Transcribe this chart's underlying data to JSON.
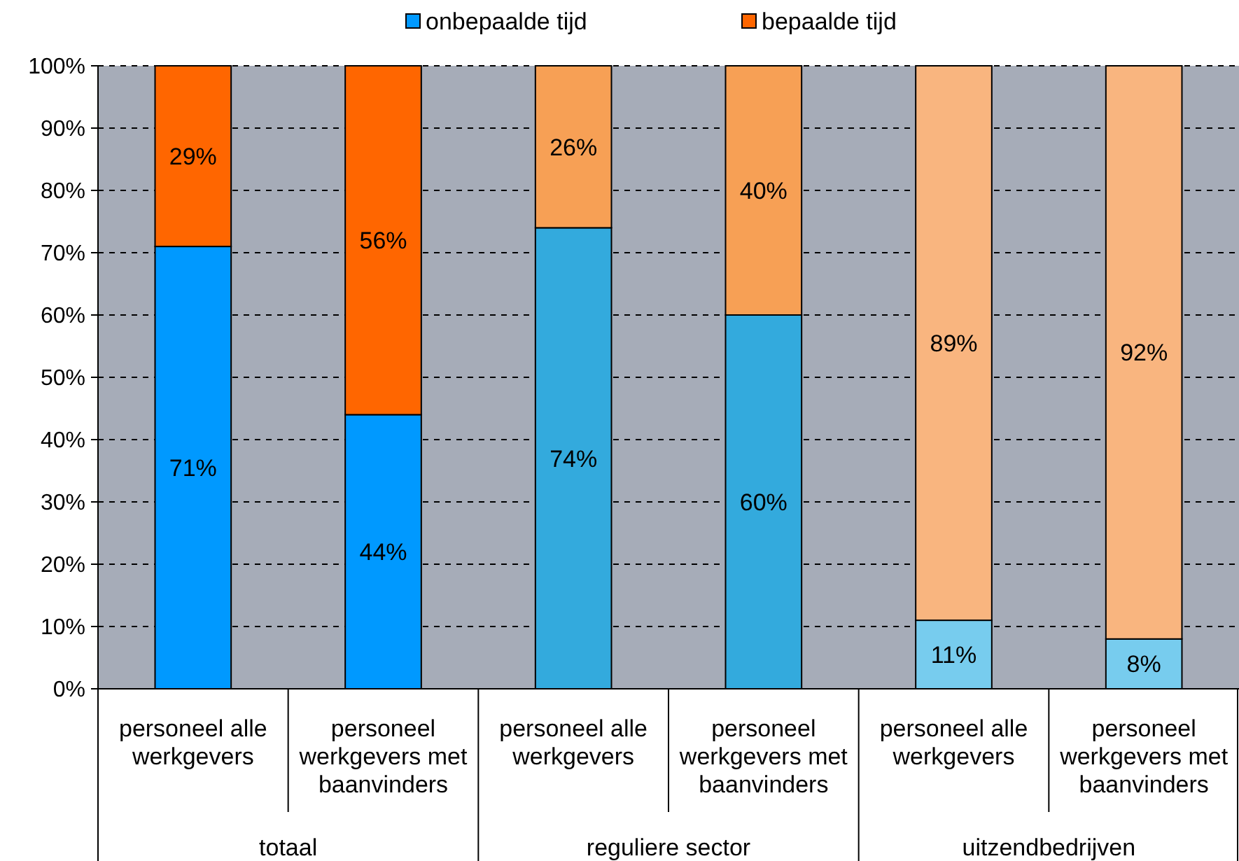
{
  "chart_data": {
    "type": "bar",
    "stacked": true,
    "categories": [
      "personeel alle werkgevers",
      "personeel werkgevers met baanvinders",
      "personeel alle werkgevers",
      "personeel werkgevers met baanvinders",
      "personeel alle werkgevers",
      "personeel werkgevers met baanvinders"
    ],
    "series": [
      {
        "name": "onbepaalde tijd",
        "color": "#0099ff",
        "colors": [
          "#0099ff",
          "#0099ff",
          "#33aadd",
          "#33aadd",
          "#77ccee",
          "#77ccee"
        ],
        "values": [
          71,
          44,
          74,
          60,
          11,
          8
        ],
        "value_labels": [
          "71%",
          "44%",
          "74%",
          "60%",
          "11%",
          "8%"
        ]
      },
      {
        "name": "bepaalde tijd",
        "color": "#ff6600",
        "colors": [
          "#ff6600",
          "#ff6600",
          "#f7a055",
          "#f7a055",
          "#f9b57f",
          "#f9b57f"
        ],
        "values": [
          29,
          56,
          26,
          40,
          89,
          92
        ],
        "value_labels": [
          "29%",
          "56%",
          "26%",
          "40%",
          "89%",
          "92%"
        ]
      }
    ],
    "ylim": [
      0,
      100
    ],
    "yticks": [
      {
        "value": 0,
        "label": "0%"
      },
      {
        "value": 10,
        "label": "10%"
      },
      {
        "value": 20,
        "label": "20%"
      },
      {
        "value": 30,
        "label": "30%"
      },
      {
        "value": 40,
        "label": "40%"
      },
      {
        "value": 50,
        "label": "50%"
      },
      {
        "value": 60,
        "label": "60%"
      },
      {
        "value": 70,
        "label": "70%"
      },
      {
        "value": 80,
        "label": "80%"
      },
      {
        "value": 90,
        "label": "90%"
      },
      {
        "value": 100,
        "label": "100%"
      }
    ],
    "grid": "y",
    "legend": "top",
    "annotations": [
      "totaal",
      "reguliere sector",
      "uitzendbedrijven"
    ]
  }
}
